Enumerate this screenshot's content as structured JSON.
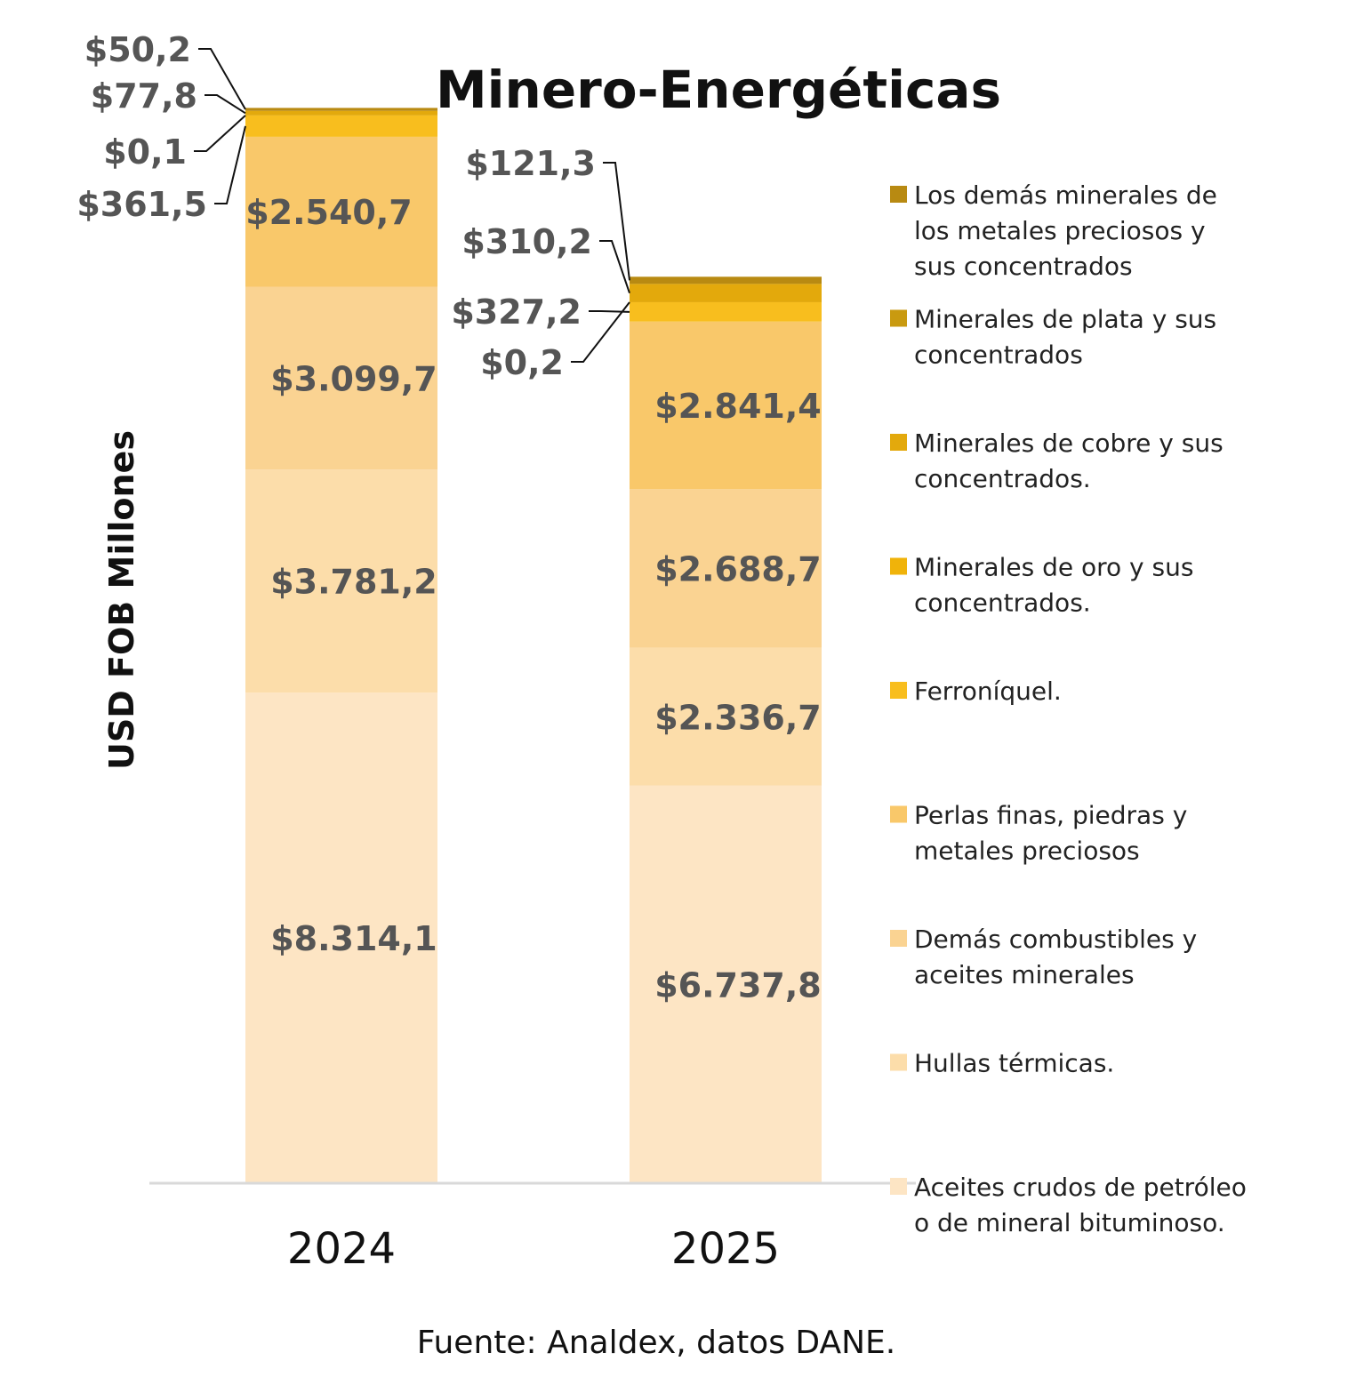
{
  "chart_data": {
    "type": "bar",
    "stacked": true,
    "title": "Minero-Energéticas",
    "ylabel": "USD FOB Millones",
    "xlabel": "",
    "categories": [
      "2024",
      "2025"
    ],
    "series": [
      {
        "name": "Aceites crudos de petróleo o de mineral bituminoso.",
        "values": [
          8314.1,
          6737.8
        ],
        "labels": [
          "$8.314,1",
          "$6.737,8"
        ],
        "color": "#FDE5C4"
      },
      {
        "name": "Hullas térmicas.",
        "values": [
          3781.2,
          2336.7
        ],
        "labels": [
          "$3.781,2",
          "$2.336,7"
        ],
        "color": "#FCDDAA"
      },
      {
        "name": "Demás combustibles y aceites minerales",
        "values": [
          3099.7,
          2688.7
        ],
        "labels": [
          "$3.099,7",
          "$2.688,7"
        ],
        "color": "#FAD392"
      },
      {
        "name": "Perlas finas, piedras y metales preciosos",
        "values": [
          2540.7,
          2841.4
        ],
        "labels": [
          "$2.540,7",
          "$2.841,4"
        ],
        "color": "#F9C86A"
      },
      {
        "name": "Ferroníquel.",
        "values": [
          361.5,
          327.2
        ],
        "labels": [
          "$361,5",
          "$327,2"
        ],
        "color": "#F8BE1E"
      },
      {
        "name": "Minerales de oro y sus concentrados.",
        "values": [
          0.1,
          0.2
        ],
        "labels": [
          "$0,1",
          "$0,2"
        ],
        "color": "#F0B30A"
      },
      {
        "name": "Minerales de cobre y sus concentrados.",
        "values": [
          77.8,
          310.2
        ],
        "labels": [
          "$77,8",
          "$310,2"
        ],
        "color": "#E3A90C"
      },
      {
        "name": "Minerales de plata y sus concentrados",
        "values": [
          0,
          0
        ],
        "labels": [
          "",
          ""
        ],
        "color": "#C99A10"
      },
      {
        "name": "Los demás minerales de los metales preciosos y sus concentrados",
        "values": [
          50.2,
          121.3
        ],
        "labels": [
          "$50,2",
          "$121,3"
        ],
        "color": "#B88A12"
      }
    ],
    "legend_position": "right",
    "grid": false,
    "source": "Fuente: Analdex, datos DANE."
  }
}
